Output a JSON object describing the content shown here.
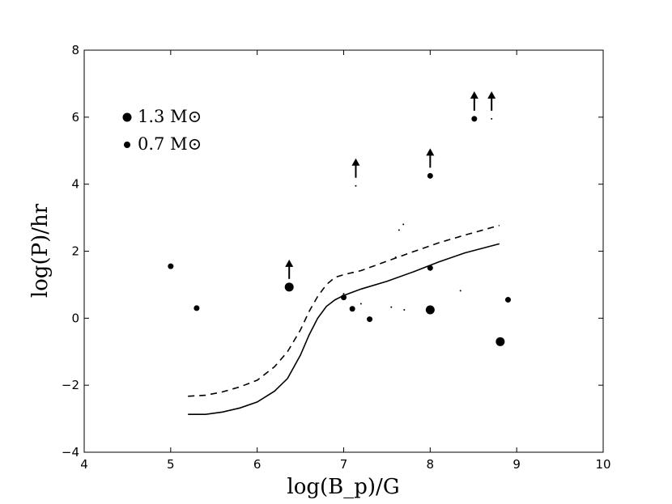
{
  "chart_data": {
    "type": "scatter",
    "title": "",
    "xlabel": "log(B_p)/G",
    "ylabel": "log(P)/hr",
    "xlim": [
      4,
      10
    ],
    "ylim": [
      -4,
      8
    ],
    "xticks": [
      4,
      5,
      6,
      7,
      8,
      9,
      10
    ],
    "yticks": [
      -4,
      -2,
      0,
      2,
      4,
      6,
      8
    ],
    "xtick_labels": [
      "4",
      "5",
      "6",
      "7",
      "8",
      "9",
      "10"
    ],
    "ytick_labels": [
      "−4",
      "−2",
      "0",
      "2",
      "4",
      "6",
      "8"
    ],
    "grid": false,
    "legend": {
      "position": "top-left",
      "entries": [
        {
          "label": "1.3 M⊙",
          "marker_size": "large"
        },
        {
          "label": "0.7 M⊙",
          "marker_size": "small"
        }
      ]
    },
    "points": [
      {
        "x": 5.0,
        "y": 1.55,
        "size": "small"
      },
      {
        "x": 5.3,
        "y": 0.3,
        "size": "small"
      },
      {
        "x": 6.37,
        "y": 0.93,
        "size": "large",
        "lower_limit": true
      },
      {
        "x": 7.0,
        "y": 0.62,
        "size": "small"
      },
      {
        "x": 7.1,
        "y": 0.28,
        "size": "small"
      },
      {
        "x": 7.3,
        "y": -0.03,
        "size": "small"
      },
      {
        "x": 7.14,
        "y": 3.95,
        "size": "tiny",
        "lower_limit": true
      },
      {
        "x": 8.0,
        "y": 4.25,
        "size": "small",
        "lower_limit": true
      },
      {
        "x": 8.0,
        "y": 1.5,
        "size": "small"
      },
      {
        "x": 8.0,
        "y": 0.25,
        "size": "large"
      },
      {
        "x": 8.51,
        "y": 5.95,
        "size": "small",
        "lower_limit": true
      },
      {
        "x": 8.71,
        "y": 5.95,
        "size": "tiny",
        "lower_limit": true
      },
      {
        "x": 8.81,
        "y": -0.7,
        "size": "large"
      },
      {
        "x": 8.9,
        "y": 0.55,
        "size": "small"
      },
      {
        "x": 7.0,
        "y": 0.73,
        "size": "tiny"
      },
      {
        "x": 7.2,
        "y": 0.43,
        "size": "tiny"
      },
      {
        "x": 7.55,
        "y": 0.33,
        "size": "tiny"
      },
      {
        "x": 7.6,
        "y": 1.82,
        "size": "tiny"
      },
      {
        "x": 7.64,
        "y": 2.63,
        "size": "tiny"
      },
      {
        "x": 7.69,
        "y": 2.8,
        "size": "tiny"
      },
      {
        "x": 7.7,
        "y": 0.25,
        "size": "tiny"
      },
      {
        "x": 8.35,
        "y": 0.82,
        "size": "tiny"
      }
    ],
    "series": [
      {
        "name": "solid",
        "style": "solid",
        "x": [
          5.2,
          5.4,
          5.6,
          5.8,
          6.0,
          6.2,
          6.35,
          6.5,
          6.6,
          6.7,
          6.8,
          6.9,
          7.0,
          7.2,
          7.5,
          7.8,
          8.1,
          8.4,
          8.8
        ],
        "y": [
          -2.87,
          -2.87,
          -2.8,
          -2.68,
          -2.5,
          -2.18,
          -1.8,
          -1.1,
          -0.5,
          0.0,
          0.35,
          0.55,
          0.68,
          0.87,
          1.1,
          1.38,
          1.68,
          1.95,
          2.22
        ]
      },
      {
        "name": "dashed",
        "style": "dashed",
        "x": [
          5.2,
          5.4,
          5.6,
          5.8,
          6.0,
          6.2,
          6.35,
          6.5,
          6.6,
          6.7,
          6.8,
          6.9,
          7.0,
          7.2,
          7.5,
          7.8,
          8.1,
          8.4,
          8.8
        ],
        "y": [
          -2.33,
          -2.3,
          -2.2,
          -2.05,
          -1.85,
          -1.45,
          -1.0,
          -0.35,
          0.2,
          0.65,
          1.0,
          1.22,
          1.3,
          1.42,
          1.7,
          1.98,
          2.25,
          2.48,
          2.77
        ]
      }
    ]
  }
}
